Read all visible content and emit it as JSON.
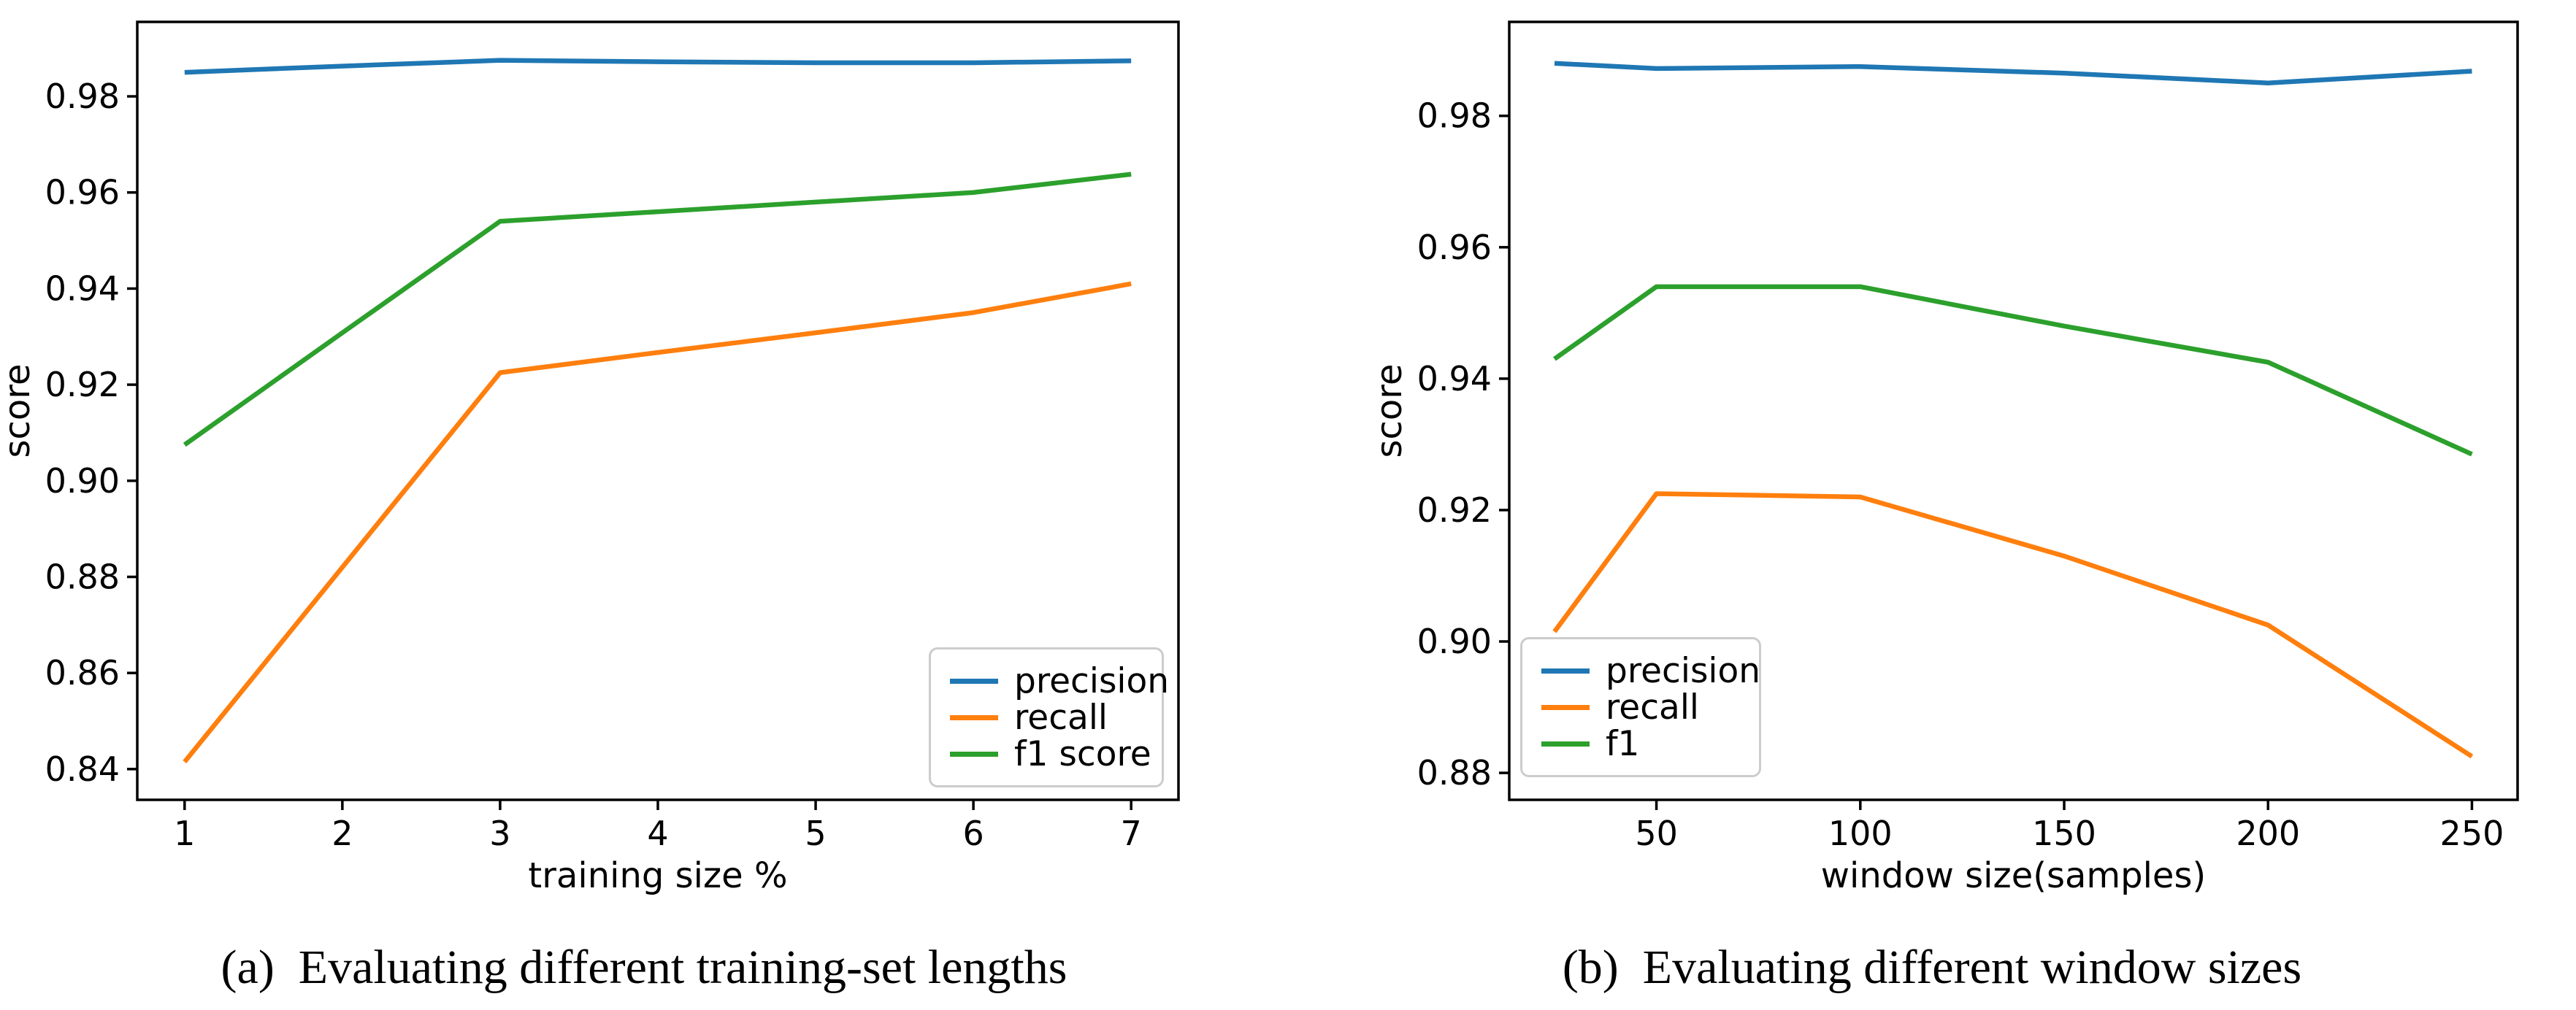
{
  "figure": {
    "caption_a": "(a)  Evaluating different training-set lengths",
    "caption_b": "(b)  Evaluating different window sizes"
  },
  "chart_data": [
    {
      "id": "a",
      "type": "line",
      "title": "(a)  Evaluating different training-set lengths",
      "xlabel": "training size %",
      "ylabel": "score",
      "grid": false,
      "x": [
        1,
        2,
        3,
        4,
        5,
        6,
        7
      ],
      "series": [
        {
          "name": "precision",
          "color": "#1f77b4",
          "values": [
            0.985,
            0.9863,
            0.9875,
            0.9872,
            0.987,
            0.987,
            0.9874
          ]
        },
        {
          "name": "recall",
          "color": "#ff7f0e",
          "values": [
            0.8415,
            0.882,
            0.9225,
            0.9267,
            0.9308,
            0.935,
            0.941
          ]
        },
        {
          "name": "f1 score",
          "color": "#2ca02c",
          "values": [
            0.9075,
            0.9308,
            0.954,
            0.956,
            0.958,
            0.96,
            0.9638
          ]
        }
      ],
      "xticks": [
        1,
        2,
        3,
        4,
        5,
        6,
        7
      ],
      "xtick_labels": [
        "1",
        "2",
        "3",
        "4",
        "5",
        "6",
        "7"
      ],
      "yticks": [
        0.84,
        0.86,
        0.88,
        0.9,
        0.92,
        0.94,
        0.96,
        0.98
      ],
      "ytick_labels": [
        "0.84",
        "0.86",
        "0.88",
        "0.90",
        "0.92",
        "0.94",
        "0.96",
        "0.98"
      ],
      "xlim": [
        0.7,
        7.3
      ],
      "ylim": [
        0.8336,
        0.9955
      ],
      "legend_position": "lower right",
      "legend_labels": [
        "precision",
        "recall",
        "f1 score"
      ]
    },
    {
      "id": "b",
      "type": "line",
      "title": "(b)  Evaluating different window sizes",
      "xlabel": "window size(samples)",
      "ylabel": "score",
      "grid": false,
      "x": [
        25,
        50,
        100,
        150,
        200,
        250
      ],
      "series": [
        {
          "name": "precision",
          "color": "#1f77b4",
          "values": [
            0.988,
            0.9872,
            0.9875,
            0.9865,
            0.985,
            0.9868
          ]
        },
        {
          "name": "recall",
          "color": "#ff7f0e",
          "values": [
            0.9015,
            0.9225,
            0.922,
            0.913,
            0.9025,
            0.8825
          ]
        },
        {
          "name": "f1",
          "color": "#2ca02c",
          "values": [
            0.943,
            0.954,
            0.954,
            0.948,
            0.9425,
            0.9285
          ]
        }
      ],
      "xticks": [
        50,
        100,
        150,
        200,
        250
      ],
      "xtick_labels": [
        "50",
        "100",
        "150",
        "200",
        "250"
      ],
      "yticks": [
        0.88,
        0.9,
        0.92,
        0.94,
        0.96,
        0.98
      ],
      "ytick_labels": [
        "0.88",
        "0.90",
        "0.92",
        "0.94",
        "0.96",
        "0.98"
      ],
      "xlim": [
        13.9,
        261.2
      ],
      "ylim": [
        0.8759,
        0.9943
      ],
      "legend_position": "lower left",
      "legend_labels": [
        "precision",
        "recall",
        "f1"
      ]
    }
  ]
}
